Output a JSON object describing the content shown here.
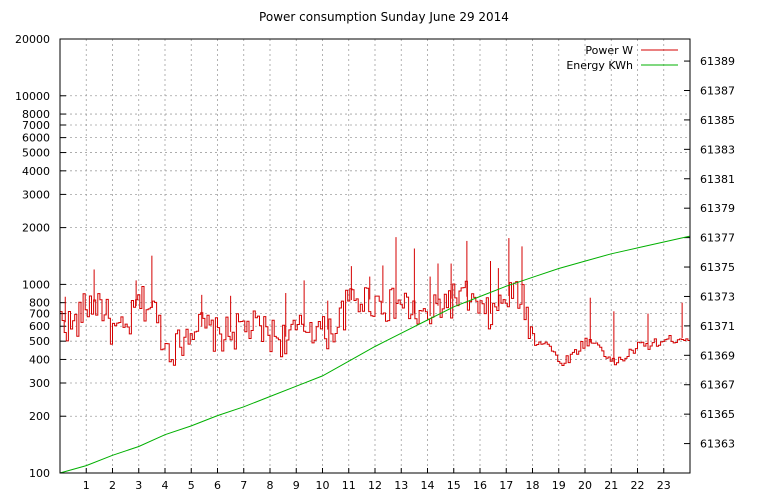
{
  "chart_data": {
    "type": "line",
    "title": "Power consumption Sunday June 29 2014",
    "x_ticks": [
      "1",
      "2",
      "3",
      "4",
      "5",
      "6",
      "7",
      "8",
      "9",
      "10",
      "11",
      "12",
      "13",
      "14",
      "15",
      "16",
      "17",
      "18",
      "19",
      "20",
      "21",
      "22",
      "23"
    ],
    "xlim": [
      0,
      24
    ],
    "y_left": {
      "scale": "log",
      "ylim": [
        100,
        20000
      ],
      "ticks": [
        100,
        200,
        300,
        400,
        500,
        600,
        700,
        800,
        1000,
        2000,
        3000,
        4000,
        5000,
        6000,
        7000,
        8000,
        10000,
        20000
      ],
      "tick_labels": [
        "100",
        "200",
        "300",
        "400",
        "500",
        "600",
        "700",
        "800",
        "1000",
        "2000",
        "3000",
        "4000",
        "5000",
        "6000",
        "7000",
        "8000",
        "10000",
        "20000"
      ]
    },
    "y_right": {
      "scale": "linear",
      "ylim": [
        61361.0,
        61390.5
      ],
      "ticks": [
        61363,
        61365,
        61367,
        61369,
        61371,
        61373,
        61375,
        61377,
        61379,
        61381,
        61383,
        61385,
        61387,
        61389
      ],
      "tick_labels": [
        "61363",
        "61365",
        "61367",
        "61369",
        "61371",
        "61373",
        "61375",
        "61377",
        "61379",
        "61381",
        "61383",
        "61385",
        "61387",
        "61389"
      ]
    },
    "grid": true,
    "legend_position": "top-right",
    "series": [
      {
        "name": "Power W",
        "axis": "left",
        "color": "#d40000",
        "x": [
          0,
          0.5,
          1,
          1.5,
          2,
          2.5,
          3,
          3.5,
          4,
          4.5,
          5,
          5.5,
          6,
          6.5,
          7,
          7.5,
          8,
          8.5,
          9,
          9.5,
          10,
          10.5,
          11,
          11.5,
          12,
          12.5,
          13,
          13.5,
          14,
          14.5,
          15,
          15.5,
          16,
          16.5,
          17,
          17.5,
          18,
          18.5,
          19,
          19.5,
          20,
          20.5,
          21,
          21.5,
          22,
          22.5,
          23,
          23.5,
          24
        ],
        "y": [
          650,
          600,
          780,
          820,
          560,
          560,
          820,
          760,
          470,
          480,
          620,
          590,
          540,
          560,
          600,
          590,
          550,
          520,
          560,
          620,
          560,
          600,
          820,
          850,
          820,
          780,
          800,
          700,
          650,
          800,
          850,
          860,
          700,
          700,
          860,
          900,
          500,
          500,
          380,
          420,
          500,
          480,
          380,
          410,
          470,
          480,
          500,
          520,
          520
        ],
        "spikes": [
          [
            0.2,
            860
          ],
          [
            1.3,
            1200
          ],
          [
            2.9,
            1050
          ],
          [
            3.5,
            1420
          ],
          [
            5.4,
            880
          ],
          [
            6.5,
            870
          ],
          [
            8.6,
            900
          ],
          [
            9.3,
            1050
          ],
          [
            10.2,
            820
          ],
          [
            11.1,
            1250
          ],
          [
            11.8,
            1100
          ],
          [
            12.3,
            1260
          ],
          [
            12.8,
            1780
          ],
          [
            13.5,
            1550
          ],
          [
            14.1,
            1100
          ],
          [
            14.4,
            1290
          ],
          [
            14.9,
            1290
          ],
          [
            15.5,
            1700
          ],
          [
            16.4,
            1330
          ],
          [
            16.7,
            1220
          ],
          [
            17.1,
            1760
          ],
          [
            17.6,
            1590
          ],
          [
            20.2,
            850
          ],
          [
            21.1,
            720
          ],
          [
            22.4,
            700
          ],
          [
            23.7,
            800
          ]
        ]
      },
      {
        "name": "Energy KWh",
        "axis": "right",
        "color": "#00b000",
        "x": [
          0,
          1,
          2,
          3,
          4,
          5,
          6,
          7,
          8,
          9,
          10,
          11,
          12,
          13,
          14,
          15,
          16,
          17,
          18,
          19,
          20,
          21,
          22,
          23,
          24
        ],
        "y": [
          61361.0,
          61361.5,
          61362.2,
          61362.8,
          61363.6,
          61364.2,
          61364.9,
          61365.5,
          61366.2,
          61366.9,
          61367.6,
          61368.6,
          61369.6,
          61370.5,
          61371.4,
          61372.3,
          61373.0,
          61373.7,
          61374.3,
          61374.9,
          61375.4,
          61375.9,
          61376.3,
          61376.7,
          61377.1
        ]
      }
    ]
  }
}
